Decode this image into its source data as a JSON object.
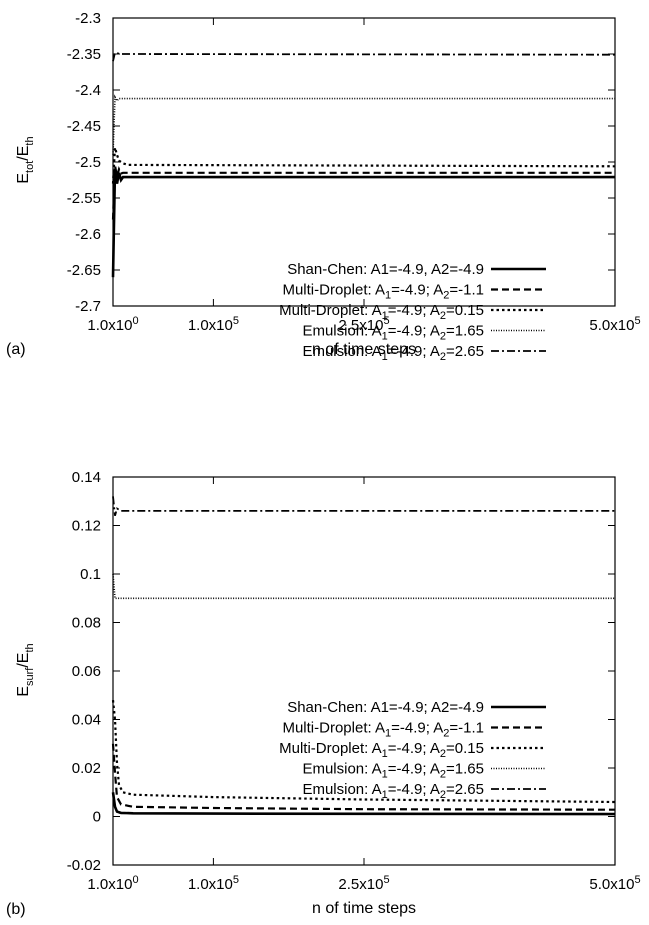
{
  "chart_data": [
    {
      "type": "line",
      "panel_label": "(a)",
      "xlabel": "n of time steps",
      "ylabel": {
        "base": "E",
        "num_sub": "tot",
        "sep": "/",
        "base2": "E",
        "den_sub": "th"
      },
      "x_ticks": [
        {
          "value": 1,
          "label": "1.0x10",
          "exp": "0"
        },
        {
          "value": 100000,
          "label": "1.0x10",
          "exp": "5"
        },
        {
          "value": 250000,
          "label": "2.5x10",
          "exp": "5"
        },
        {
          "value": 500000,
          "label": "5.0x10",
          "exp": "5"
        }
      ],
      "xlim": [
        1,
        500000
      ],
      "ylim": [
        -2.7,
        -2.3
      ],
      "y_ticks": [
        -2.7,
        -2.65,
        -2.6,
        -2.55,
        -2.5,
        -2.45,
        -2.4,
        -2.35,
        -2.3
      ],
      "y_tick_labels": [
        "-2.7",
        "-2.65",
        "-2.6",
        "-2.55",
        "-2.5",
        "-2.45",
        "-2.4",
        "-2.35",
        "-2.3"
      ],
      "legend_position": "center-right",
      "series": [
        {
          "name": "Shan-Chen: A1=-4.9, A2=-4.9",
          "style": "solid",
          "legend_parts": [
            [
              "Shan-Chen: A1=-4.9, A2=-4.9",
              ""
            ]
          ],
          "x": [
            1,
            2000,
            4000,
            6000,
            8000,
            10000,
            15000,
            500000
          ],
          "y": [
            -2.66,
            -2.51,
            -2.53,
            -2.515,
            -2.525,
            -2.521,
            -2.521,
            -2.521
          ]
        },
        {
          "name": "Multi-Droplet: A1=-4.9; A2=-1.1",
          "style": "dashed",
          "legend_parts": [
            [
              "Multi-Droplet: A",
              ""
            ],
            [
              "1",
              "sub"
            ],
            [
              "=-4.9; A",
              ""
            ],
            [
              "2",
              "sub"
            ],
            [
              "=-1.1",
              ""
            ]
          ],
          "x": [
            1,
            2000,
            4000,
            6000,
            8000,
            10000,
            15000,
            500000
          ],
          "y": [
            -2.58,
            -2.505,
            -2.52,
            -2.51,
            -2.516,
            -2.515,
            -2.515,
            -2.515
          ]
        },
        {
          "name": "Multi-Droplet: A1=-4.9; A2=0.15",
          "style": "dotted",
          "legend_parts": [
            [
              "Multi-Droplet: A",
              ""
            ],
            [
              "1",
              "sub"
            ],
            [
              "=-4.9; A",
              ""
            ],
            [
              "2",
              "sub"
            ],
            [
              "=0.15",
              ""
            ]
          ],
          "x": [
            1,
            2000,
            4000,
            6000,
            8000,
            10000,
            15000,
            500000
          ],
          "y": [
            -2.53,
            -2.48,
            -2.49,
            -2.498,
            -2.5,
            -2.502,
            -2.504,
            -2.506
          ]
        },
        {
          "name": "Emulsion: A1=-4.9; A2=1.65",
          "style": "fine-dotted",
          "legend_parts": [
            [
              "Emulsion: A",
              ""
            ],
            [
              "1",
              "sub"
            ],
            [
              "=-4.9; A",
              ""
            ],
            [
              "2",
              "sub"
            ],
            [
              "=1.65",
              ""
            ]
          ],
          "x": [
            1,
            2000,
            4000,
            6000,
            10000,
            500000
          ],
          "y": [
            -2.49,
            -2.41,
            -2.415,
            -2.412,
            -2.412,
            -2.412
          ]
        },
        {
          "name": "Emulsion: A1=-4.9; A2=2.65",
          "style": "dash-dot",
          "legend_parts": [
            [
              "Emulsion: A",
              ""
            ],
            [
              "1",
              "sub"
            ],
            [
              "=-4.9; A",
              ""
            ],
            [
              "2",
              "sub"
            ],
            [
              "=2.65",
              ""
            ]
          ],
          "x": [
            1,
            2000,
            4000,
            8000,
            500000
          ],
          "y": [
            -2.36,
            -2.348,
            -2.349,
            -2.35,
            -2.351
          ]
        }
      ]
    },
    {
      "type": "line",
      "panel_label": "(b)",
      "xlabel": "n of time steps",
      "ylabel": {
        "base": "E",
        "num_sub": "surf",
        "sep": "/",
        "base2": "E",
        "den_sub": "th"
      },
      "x_ticks": [
        {
          "value": 1,
          "label": "1.0x10",
          "exp": "0"
        },
        {
          "value": 100000,
          "label": "1.0x10",
          "exp": "5"
        },
        {
          "value": 250000,
          "label": "2.5x10",
          "exp": "5"
        },
        {
          "value": 500000,
          "label": "5.0x10",
          "exp": "5"
        }
      ],
      "xlim": [
        1,
        500000
      ],
      "ylim": [
        -0.02,
        0.14
      ],
      "y_ticks": [
        -0.02,
        0,
        0.02,
        0.04,
        0.06,
        0.08,
        0.1,
        0.12,
        0.14
      ],
      "y_tick_labels": [
        "-0.02",
        "0",
        "0.02",
        "0.04",
        "0.06",
        "0.08",
        "0.1",
        "0.12",
        "0.14"
      ],
      "legend_position": "center-right",
      "series": [
        {
          "name": "Shan-Chen: A1=-4.9; A2=-4.9",
          "style": "solid",
          "legend_parts": [
            [
              "Shan-Chen: A1=-4.9; A2=-4.9",
              ""
            ]
          ],
          "x": [
            1,
            2000,
            4000,
            8000,
            20000,
            100000,
            250000,
            500000
          ],
          "y": [
            0.01,
            0.004,
            0.002,
            0.0015,
            0.0013,
            0.0012,
            0.0011,
            0.001
          ]
        },
        {
          "name": "Multi-Droplet: A1=-4.9; A2=-1.1",
          "style": "dashed",
          "legend_parts": [
            [
              "Multi-Droplet: A",
              ""
            ],
            [
              "1",
              "sub"
            ],
            [
              "=-4.9; A",
              ""
            ],
            [
              "2",
              "sub"
            ],
            [
              "=-1.1",
              ""
            ]
          ],
          "x": [
            1,
            2000,
            4000,
            8000,
            20000,
            100000,
            250000,
            500000
          ],
          "y": [
            0.03,
            0.018,
            0.008,
            0.005,
            0.004,
            0.0035,
            0.003,
            0.0028
          ]
        },
        {
          "name": "Multi-Droplet: A1=-4.9; A2=0.15",
          "style": "dotted",
          "legend_parts": [
            [
              "Multi-Droplet: A",
              ""
            ],
            [
              "1",
              "sub"
            ],
            [
              "=-4.9; A",
              ""
            ],
            [
              "2",
              "sub"
            ],
            [
              "=0.15",
              ""
            ]
          ],
          "x": [
            1,
            2000,
            4000,
            6000,
            10000,
            20000,
            100000,
            250000,
            500000
          ],
          "y": [
            0.048,
            0.04,
            0.022,
            0.013,
            0.01,
            0.009,
            0.008,
            0.007,
            0.006
          ]
        },
        {
          "name": "Emulsion: A1=-4.9; A2=1.65",
          "style": "fine-dotted",
          "legend_parts": [
            [
              "Emulsion: A",
              ""
            ],
            [
              "1",
              "sub"
            ],
            [
              "=-4.9; A",
              ""
            ],
            [
              "2",
              "sub"
            ],
            [
              "=1.65",
              ""
            ]
          ],
          "x": [
            1,
            2000,
            4000,
            8000,
            500000
          ],
          "y": [
            0.1,
            0.09,
            0.09,
            0.09,
            0.09
          ]
        },
        {
          "name": "Emulsion: A1=-4.9; A2=2.65",
          "style": "dash-dot",
          "legend_parts": [
            [
              "Emulsion: A",
              ""
            ],
            [
              "1",
              "sub"
            ],
            [
              "=-4.9; A",
              ""
            ],
            [
              "2",
              "sub"
            ],
            [
              "=2.65",
              ""
            ]
          ],
          "x": [
            1,
            2000,
            4000,
            8000,
            500000
          ],
          "y": [
            0.132,
            0.124,
            0.127,
            0.126,
            0.126
          ]
        }
      ]
    }
  ]
}
